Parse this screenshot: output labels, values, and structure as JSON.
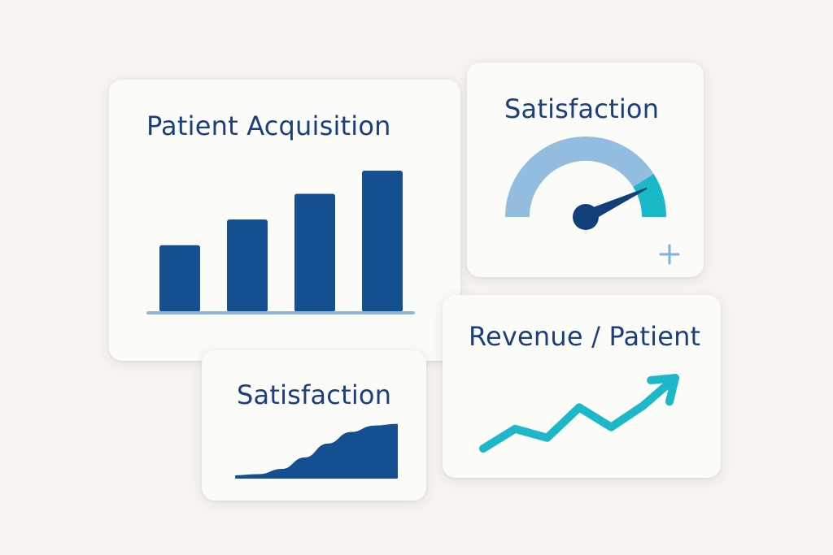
{
  "colors": {
    "background": "#f7f4ef",
    "card": "#fbfbf8",
    "title": "#1a3f7c",
    "bar": "#144f8f",
    "baseline": "#8fb6da",
    "gauge_track": "#93bddf",
    "gauge_accent": "#19b9c8",
    "needle": "#123f7a",
    "trend": "#1cb7c9",
    "plus": "#7fb3dc"
  },
  "cards": {
    "acquisition": {
      "title": "Patient Acquisition"
    },
    "gauge": {
      "title": "Satisfaction",
      "action_icon": "plus-icon"
    },
    "area": {
      "title": "Satisfaction"
    },
    "revenue": {
      "title": "Revenue / Patient"
    }
  },
  "chart_data": [
    {
      "type": "bar",
      "title": "Patient Acquisition",
      "categories": [
        "",
        "",
        "",
        ""
      ],
      "values": [
        2.6,
        3.6,
        4.6,
        5.5
      ],
      "ylim": [
        0,
        5.5
      ],
      "grid": false,
      "legend": "none"
    },
    {
      "type": "gauge",
      "title": "Satisfaction",
      "range": [
        0,
        100
      ],
      "value": 86,
      "accent_from": 82
    },
    {
      "type": "area",
      "title": "Satisfaction",
      "x": [
        0,
        1,
        2,
        3,
        4,
        5,
        6,
        7
      ],
      "values": [
        0.3,
        0.5,
        1.4,
        3.4,
        5.8,
        7.8,
        8.9,
        9.2
      ],
      "ylim": [
        0,
        10
      ]
    },
    {
      "type": "line",
      "title": "Revenue / Patient",
      "x": [
        0,
        1,
        2,
        3,
        4,
        5,
        6
      ],
      "values": [
        1.0,
        3.2,
        2.2,
        5.6,
        3.4,
        5.8,
        8.9
      ],
      "ylim": [
        0,
        10
      ],
      "arrow": true
    }
  ]
}
